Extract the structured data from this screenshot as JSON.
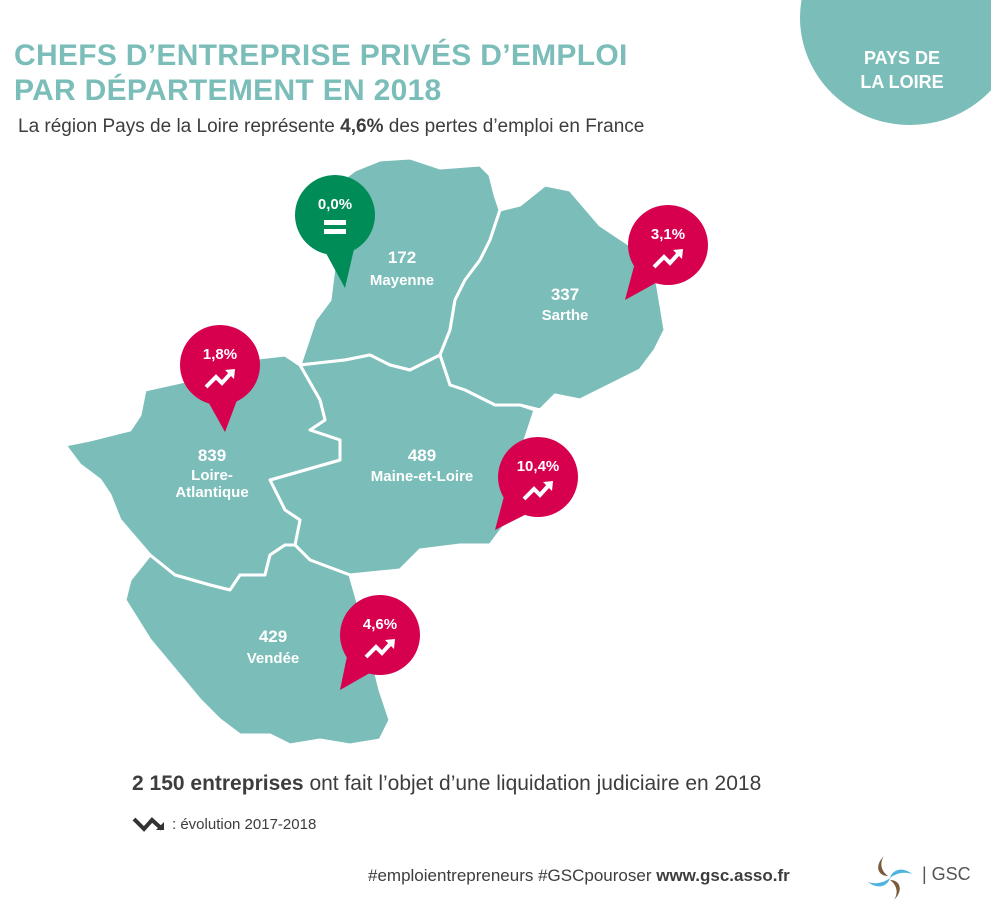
{
  "header": {
    "title_line1": "CHEFS D’ENTREPRISE PRIVÉS D’EMPLOI",
    "title_line2": "PAR DÉPARTEMENT EN 2018",
    "subtitle_before": "La région Pays de la Loire représente ",
    "subtitle_bold": "4,6%",
    "subtitle_after": " des pertes d’emploi en France",
    "region_line1": "PAYS DE",
    "region_line2": "LA LOIRE"
  },
  "colors": {
    "teal": "#7bbdb9",
    "increase": "#d6004f",
    "stable": "#008c57"
  },
  "departments": [
    {
      "name": "Mayenne",
      "count": "172",
      "evolution": "0,0%",
      "trend": "equal-icon"
    },
    {
      "name": "Sarthe",
      "count": "337",
      "evolution": "3,1%",
      "trend": "trend-up-icon"
    },
    {
      "name": "Loire-Atlantique",
      "name_line1": "Loire-",
      "name_line2": "Atlantique",
      "count": "839",
      "evolution": "1,8%",
      "trend": "trend-up-icon"
    },
    {
      "name": "Maine-et-Loire",
      "count": "489",
      "evolution": "10,4%",
      "trend": "trend-up-icon"
    },
    {
      "name": "Vendée",
      "count": "429",
      "evolution": "4,6%",
      "trend": "trend-up-icon"
    }
  ],
  "summary": {
    "bold": "2 150 entreprises",
    "rest": " ont fait l’objet d’une liquidation judiciaire en 2018"
  },
  "legend": {
    "text": ": évolution 2017-2018",
    "icon": "trend-down-icon"
  },
  "footer": {
    "hashtags": "#emploientrepreneurs #GSCpouroser ",
    "url": "www.gsc.asso.fr",
    "brand": "| GSC"
  }
}
